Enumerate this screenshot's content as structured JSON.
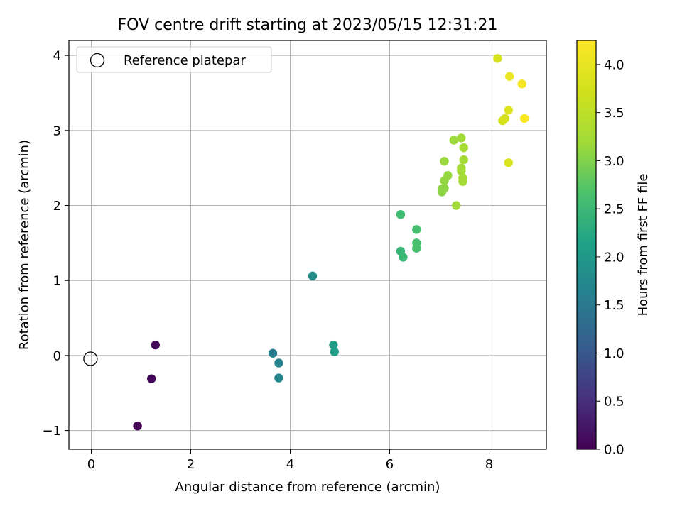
{
  "chart_data": {
    "type": "scatter",
    "title": "FOV centre drift starting at 2023/05/15 12:31:21",
    "xlabel": "Angular distance from reference (arcmin)",
    "ylabel": "Rotation from reference (arcmin)",
    "xlim": [
      -0.45,
      9.15
    ],
    "ylim": [
      -1.25,
      4.2
    ],
    "xticks": [
      0,
      2,
      4,
      6,
      8
    ],
    "yticks": [
      -1,
      0,
      1,
      2,
      3,
      4
    ],
    "xtick_labels": [
      "0",
      "2",
      "4",
      "6",
      "8"
    ],
    "ytick_labels": [
      "−1",
      "0",
      "1",
      "2",
      "3",
      "4"
    ],
    "grid": true,
    "legend": {
      "location": "upper-left",
      "entries": [
        {
          "label": "Reference platepar",
          "marker": "open-circle"
        }
      ]
    },
    "reference_point": {
      "x": 0,
      "y": 0
    },
    "colorbar": {
      "label": "Hours from first FF file",
      "colormap": "viridis",
      "range": [
        0,
        4.25
      ],
      "ticks": [
        0,
        0.5,
        1,
        1.5,
        2,
        2.5,
        3,
        3.5,
        4
      ],
      "tick_labels": [
        "0.0",
        "0.5",
        "1.0",
        "1.5",
        "2.0",
        "2.5",
        "3.0",
        "3.5",
        "4.0"
      ]
    },
    "points": [
      {
        "x": 0.93,
        "y": -0.94,
        "t": 0.0
      },
      {
        "x": 1.21,
        "y": -0.31,
        "t": 0.05
      },
      {
        "x": 1.29,
        "y": 0.14,
        "t": 0.1
      },
      {
        "x": 3.65,
        "y": 0.03,
        "t": 1.6
      },
      {
        "x": 3.77,
        "y": -0.1,
        "t": 1.65
      },
      {
        "x": 3.77,
        "y": -0.3,
        "t": 1.7
      },
      {
        "x": 4.45,
        "y": 1.06,
        "t": 1.8
      },
      {
        "x": 4.87,
        "y": 0.14,
        "t": 2.05
      },
      {
        "x": 4.89,
        "y": 0.05,
        "t": 2.1
      },
      {
        "x": 6.22,
        "y": 1.39,
        "t": 2.45
      },
      {
        "x": 6.27,
        "y": 1.31,
        "t": 2.5
      },
      {
        "x": 6.22,
        "y": 1.88,
        "t": 2.55
      },
      {
        "x": 6.54,
        "y": 1.68,
        "t": 2.6
      },
      {
        "x": 6.54,
        "y": 1.5,
        "t": 2.62
      },
      {
        "x": 6.54,
        "y": 1.43,
        "t": 2.64
      },
      {
        "x": 7.05,
        "y": 2.18,
        "t": 3.05
      },
      {
        "x": 7.05,
        "y": 2.22,
        "t": 3.07
      },
      {
        "x": 7.1,
        "y": 2.23,
        "t": 3.08
      },
      {
        "x": 7.1,
        "y": 2.33,
        "t": 3.1
      },
      {
        "x": 7.17,
        "y": 2.4,
        "t": 3.12
      },
      {
        "x": 7.1,
        "y": 2.59,
        "t": 3.14
      },
      {
        "x": 7.29,
        "y": 2.87,
        "t": 3.16
      },
      {
        "x": 7.34,
        "y": 2.0,
        "t": 3.18
      },
      {
        "x": 7.44,
        "y": 2.9,
        "t": 3.2
      },
      {
        "x": 7.44,
        "y": 2.5,
        "t": 3.2
      },
      {
        "x": 7.44,
        "y": 2.46,
        "t": 3.22
      },
      {
        "x": 7.47,
        "y": 2.32,
        "t": 3.22
      },
      {
        "x": 7.47,
        "y": 2.37,
        "t": 3.24
      },
      {
        "x": 7.49,
        "y": 2.61,
        "t": 3.24
      },
      {
        "x": 7.49,
        "y": 2.77,
        "t": 3.26
      },
      {
        "x": 8.17,
        "y": 3.96,
        "t": 3.8
      },
      {
        "x": 8.27,
        "y": 3.13,
        "t": 3.75
      },
      {
        "x": 8.32,
        "y": 3.16,
        "t": 3.8
      },
      {
        "x": 8.39,
        "y": 2.57,
        "t": 3.85
      },
      {
        "x": 8.39,
        "y": 3.27,
        "t": 3.88
      },
      {
        "x": 8.41,
        "y": 3.72,
        "t": 4.05
      },
      {
        "x": 8.66,
        "y": 3.62,
        "t": 4.15
      },
      {
        "x": 8.71,
        "y": 3.16,
        "t": 4.2
      }
    ]
  }
}
